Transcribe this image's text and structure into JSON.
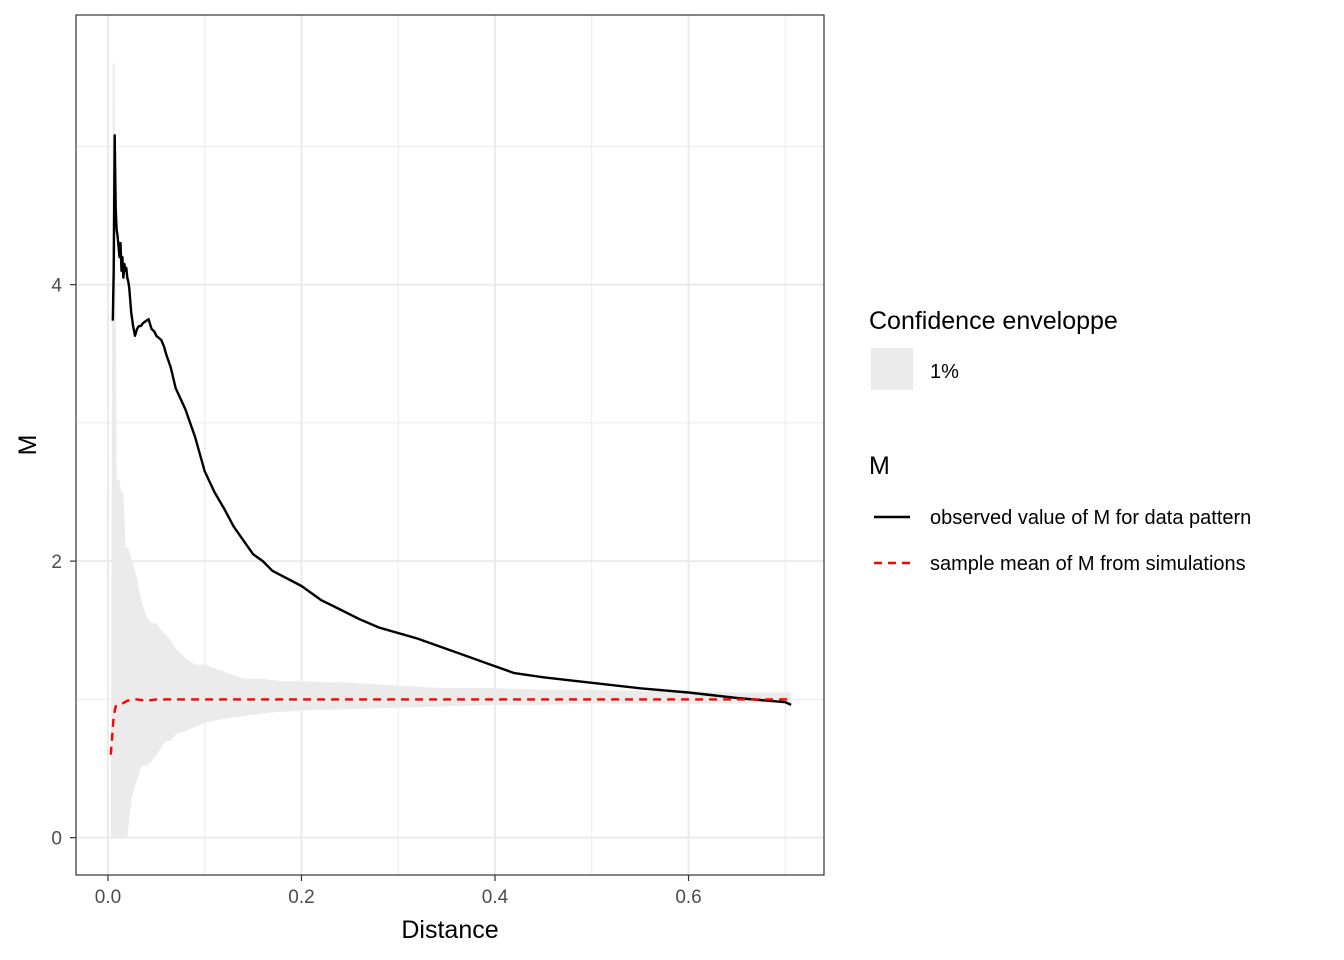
{
  "chart_data": {
    "type": "line",
    "xlabel": "Distance",
    "ylabel": "M",
    "xlim": [
      -0.033,
      0.74
    ],
    "ylim": [
      -0.27,
      5.95
    ],
    "x_ticks": [
      0.0,
      0.2,
      0.4,
      0.6
    ],
    "x_tick_labels": [
      "0.0",
      "0.2",
      "0.4",
      "0.6"
    ],
    "y_ticks": [
      0,
      2,
      4
    ],
    "y_tick_labels": [
      "0",
      "2",
      "4"
    ],
    "grid": true,
    "legend_position": "right",
    "legend": {
      "envelope_title": "Confidence enveloppe",
      "envelope_label": "1%",
      "lines_title": "M",
      "observed_label": "observed value of M for data pattern",
      "mean_label": "sample mean of M from simulations"
    },
    "colors": {
      "observed": "#000000",
      "mean": "#ff0000",
      "envelope": "#ebebeb"
    },
    "envelope": {
      "x": [
        0.003,
        0.005,
        0.007,
        0.009,
        0.012,
        0.014,
        0.016,
        0.018,
        0.02,
        0.022,
        0.025,
        0.03,
        0.035,
        0.04,
        0.045,
        0.05,
        0.055,
        0.06,
        0.065,
        0.07,
        0.08,
        0.09,
        0.1,
        0.12,
        0.14,
        0.16,
        0.18,
        0.2,
        0.25,
        0.3,
        0.35,
        0.4,
        0.45,
        0.5,
        0.55,
        0.6,
        0.65,
        0.7,
        0.706
      ],
      "upper": [
        0.0,
        5.6,
        5.6,
        2.6,
        2.58,
        2.5,
        2.5,
        2.1,
        2.1,
        2.08,
        2.0,
        1.88,
        1.7,
        1.6,
        1.55,
        1.55,
        1.5,
        1.47,
        1.42,
        1.37,
        1.3,
        1.25,
        1.25,
        1.2,
        1.15,
        1.15,
        1.13,
        1.13,
        1.12,
        1.1,
        1.08,
        1.08,
        1.07,
        1.07,
        1.06,
        1.06,
        1.05,
        1.05,
        1.05
      ],
      "lower": [
        0.0,
        0.0,
        0.0,
        0.0,
        0.0,
        0.0,
        0.0,
        0.0,
        0.0,
        0.13,
        0.3,
        0.42,
        0.52,
        0.52,
        0.55,
        0.6,
        0.65,
        0.7,
        0.7,
        0.75,
        0.77,
        0.8,
        0.83,
        0.86,
        0.88,
        0.9,
        0.91,
        0.92,
        0.93,
        0.94,
        0.95,
        0.96,
        0.96,
        0.97,
        0.97,
        0.97,
        0.97,
        0.98,
        0.98
      ]
    },
    "series": [
      {
        "name": "observed value of M for data pattern",
        "x": [
          0.005,
          0.006,
          0.007,
          0.008,
          0.009,
          0.01,
          0.012,
          0.013,
          0.014,
          0.015,
          0.016,
          0.017,
          0.018,
          0.019,
          0.02,
          0.021,
          0.022,
          0.024,
          0.026,
          0.028,
          0.03,
          0.032,
          0.034,
          0.036,
          0.038,
          0.042,
          0.045,
          0.048,
          0.05,
          0.055,
          0.058,
          0.06,
          0.065,
          0.07,
          0.08,
          0.09,
          0.1,
          0.11,
          0.12,
          0.13,
          0.14,
          0.15,
          0.16,
          0.17,
          0.2,
          0.21,
          0.22,
          0.24,
          0.26,
          0.28,
          0.32,
          0.34,
          0.36,
          0.4,
          0.42,
          0.45,
          0.5,
          0.55,
          0.6,
          0.65,
          0.7,
          0.706
        ],
        "y": [
          3.74,
          4.1,
          5.08,
          4.55,
          4.4,
          4.35,
          4.2,
          4.3,
          4.1,
          4.2,
          4.05,
          4.15,
          4.1,
          4.12,
          4.05,
          4.02,
          3.98,
          3.8,
          3.7,
          3.63,
          3.68,
          3.7,
          3.7,
          3.72,
          3.73,
          3.75,
          3.68,
          3.66,
          3.63,
          3.6,
          3.55,
          3.5,
          3.4,
          3.25,
          3.1,
          2.9,
          2.65,
          2.5,
          2.38,
          2.25,
          2.15,
          2.05,
          2.0,
          1.93,
          1.82,
          1.77,
          1.72,
          1.65,
          1.58,
          1.52,
          1.44,
          1.39,
          1.34,
          1.24,
          1.19,
          1.16,
          1.12,
          1.08,
          1.05,
          1.01,
          0.98,
          0.96
        ]
      },
      {
        "name": "sample mean of M from simulations",
        "x": [
          0.003,
          0.006,
          0.008,
          0.01,
          0.015,
          0.02,
          0.025,
          0.03,
          0.04,
          0.05,
          0.06,
          0.08,
          0.1,
          0.2,
          0.3,
          0.4,
          0.5,
          0.6,
          0.7,
          0.706
        ],
        "y": [
          0.6,
          0.88,
          0.95,
          0.95,
          0.97,
          0.99,
          1.0,
          1.0,
          0.99,
          1.0,
          1.0,
          1.0,
          1.0,
          1.0,
          1.0,
          1.0,
          1.0,
          1.0,
          1.0,
          1.0
        ]
      }
    ]
  }
}
